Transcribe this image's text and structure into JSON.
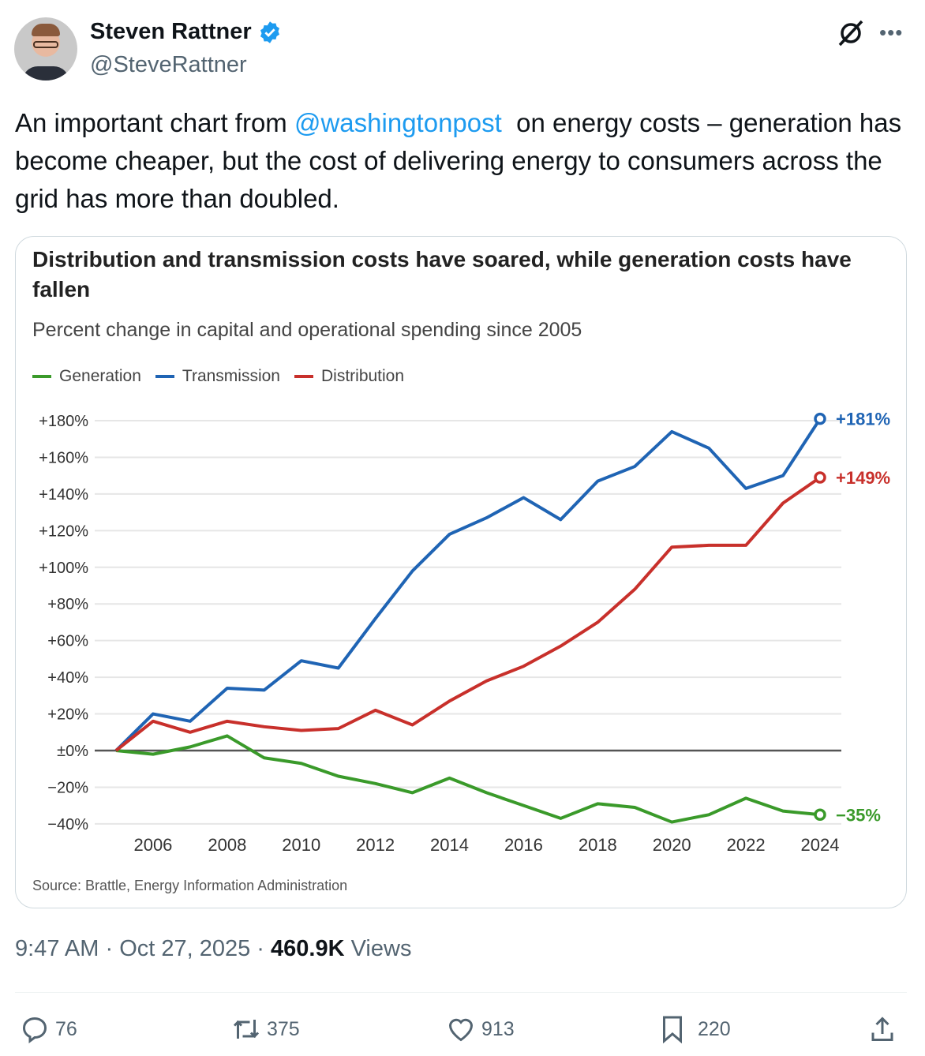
{
  "author": {
    "name": "Steven Rattner",
    "handle": "@SteveRattner",
    "verified": true
  },
  "tweet": {
    "text_before": "An important chart from ",
    "mention": "@washingtonpost",
    "text_after": "  on energy costs – generation has become cheaper, but the cost of delivering energy to consumers across the grid has more than doubled."
  },
  "meta": {
    "time": "9:47 AM",
    "date": "Oct 27, 2025",
    "views_count": "460.9K",
    "views_label": "Views"
  },
  "actions": {
    "replies": "76",
    "reposts": "375",
    "likes": "913",
    "bookmarks": "220"
  },
  "colors": {
    "accent": "#1d9bf0",
    "generation": "#3a9a2a",
    "transmission": "#1f64b4",
    "distribution": "#c8302b"
  },
  "chart_data": {
    "type": "line",
    "title": "Distribution and transmission costs have soared, while generation costs have fallen",
    "subtitle": "Percent change in capital and operational spending since 2005",
    "source": "Source: Brattle, Energy Information Administration",
    "x": [
      2005,
      2006,
      2007,
      2008,
      2009,
      2010,
      2011,
      2012,
      2013,
      2014,
      2015,
      2016,
      2017,
      2018,
      2019,
      2020,
      2021,
      2022,
      2023,
      2024
    ],
    "x_ticks": [
      "2006",
      "2008",
      "2010",
      "2012",
      "2014",
      "2016",
      "2018",
      "2020",
      "2022",
      "2024"
    ],
    "y_ticks": [
      {
        "v": 180,
        "label": "+180%"
      },
      {
        "v": 160,
        "label": "+160%"
      },
      {
        "v": 140,
        "label": "+140%"
      },
      {
        "v": 120,
        "label": "+120%"
      },
      {
        "v": 100,
        "label": "+100%"
      },
      {
        "v": 80,
        "label": "+80%"
      },
      {
        "v": 60,
        "label": "+60%"
      },
      {
        "v": 40,
        "label": "+40%"
      },
      {
        "v": 20,
        "label": "+20%"
      },
      {
        "v": 0,
        "label": "±0%"
      },
      {
        "v": -20,
        "label": "−20%"
      },
      {
        "v": -40,
        "label": "−40%"
      }
    ],
    "ylim": [
      -40,
      180
    ],
    "grid": true,
    "legend_placement": "top-left",
    "series": [
      {
        "name": "Generation",
        "color": "#3a9a2a",
        "end_label": "−35%",
        "values": [
          0,
          -2,
          2,
          8,
          -4,
          -7,
          -14,
          -18,
          -23,
          -15,
          -23,
          -30,
          -37,
          -29,
          -31,
          -39,
          -35,
          -26,
          -33,
          -35
        ]
      },
      {
        "name": "Transmission",
        "color": "#1f64b4",
        "end_label": "+181%",
        "values": [
          0,
          20,
          16,
          34,
          33,
          49,
          45,
          72,
          98,
          118,
          127,
          138,
          126,
          147,
          155,
          174,
          165,
          143,
          150,
          181
        ]
      },
      {
        "name": "Distribution",
        "color": "#c8302b",
        "end_label": "+149%",
        "values": [
          0,
          16,
          10,
          16,
          13,
          11,
          12,
          22,
          14,
          27,
          38,
          46,
          57,
          70,
          88,
          111,
          112,
          112,
          135,
          149
        ]
      }
    ]
  }
}
